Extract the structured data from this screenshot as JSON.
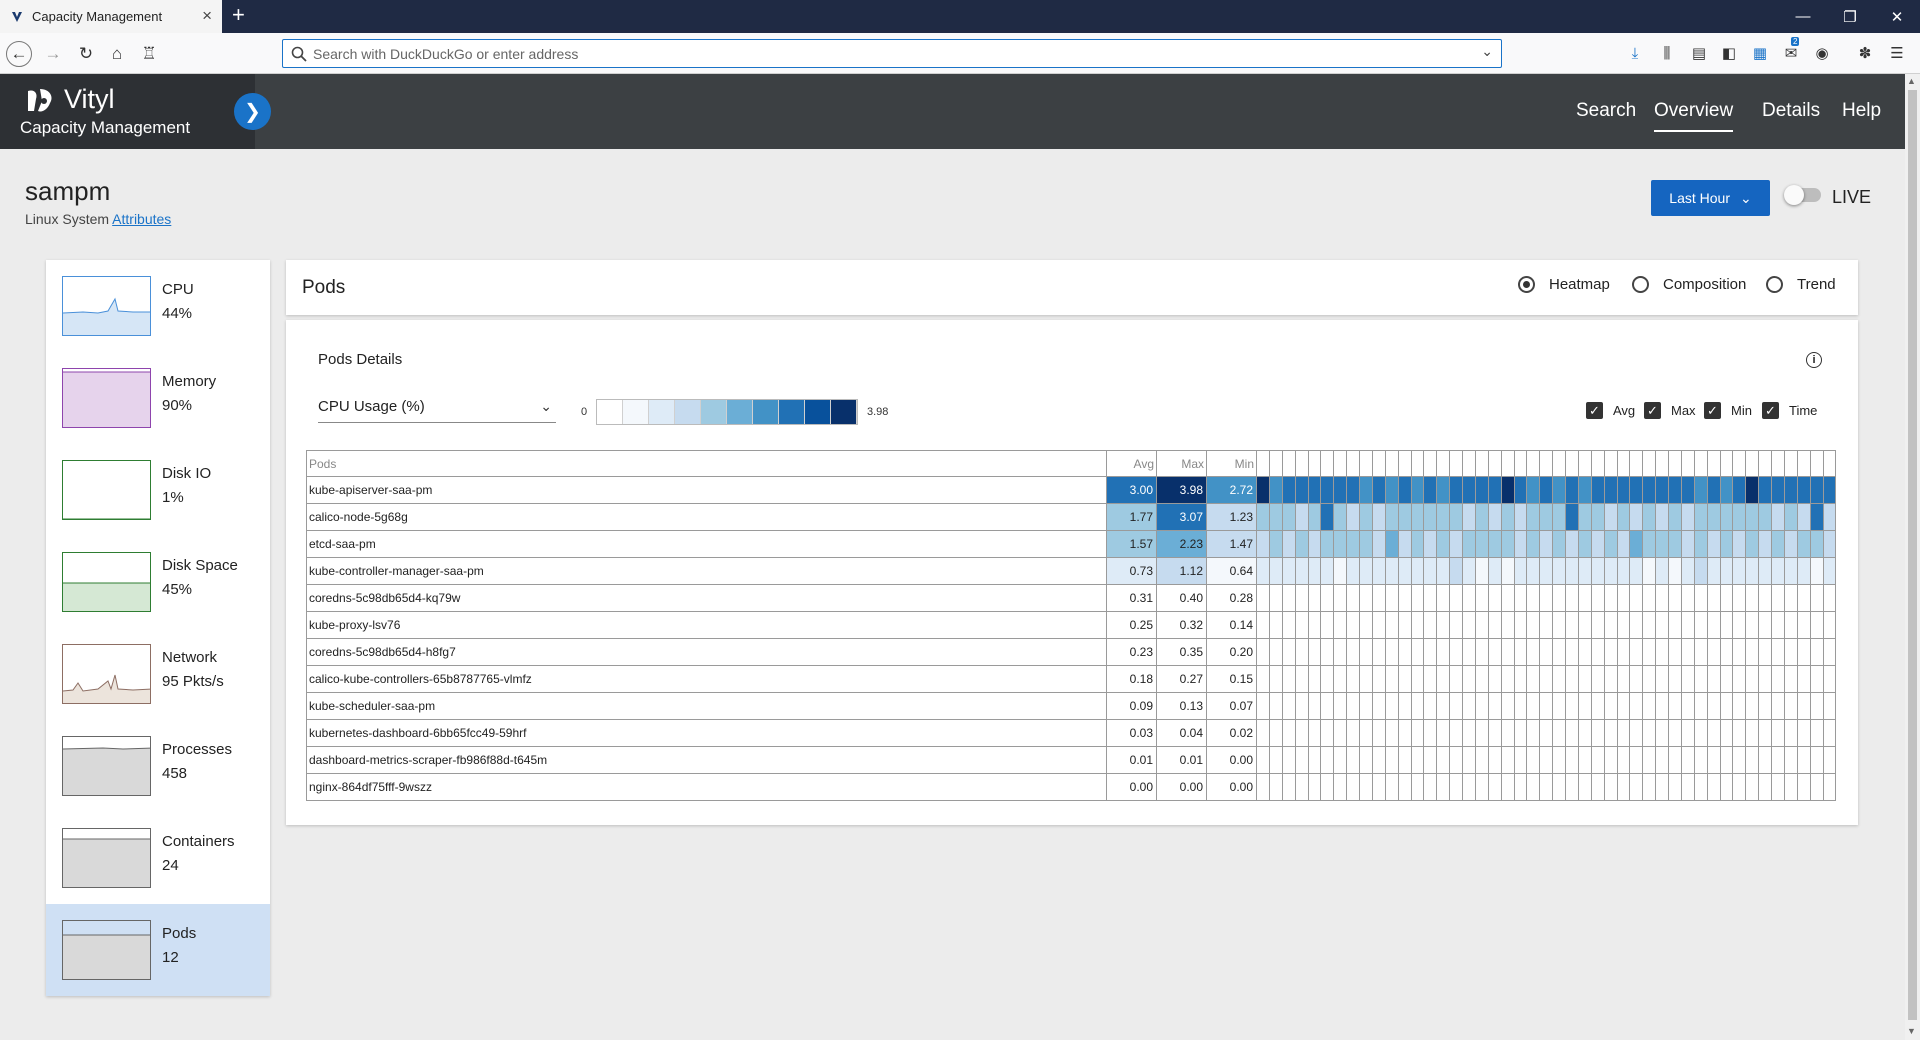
{
  "browser": {
    "tab_title": "Capacity Management",
    "url_placeholder": "Search with DuckDuckGo or enter address",
    "badge_count": "2"
  },
  "app": {
    "brand": "Vityl",
    "subtitle": "Capacity Management",
    "nav": [
      "Search",
      "Overview",
      "Details",
      "Help"
    ],
    "active_nav": "Overview"
  },
  "system": {
    "name": "sampm",
    "type": "Linux System",
    "attributes_link": "Attributes",
    "time_range": "Last Hour",
    "live_label": "LIVE",
    "live_on": false
  },
  "sidebar": [
    {
      "label": "CPU",
      "value": "44%",
      "color": "#4a90d9",
      "fill": "#d6e6f6"
    },
    {
      "label": "Memory",
      "value": "90%",
      "color": "#8e44ad",
      "fill": "#e6d3ec"
    },
    {
      "label": "Disk IO",
      "value": "1%",
      "color": "#2e7d32",
      "fill": "#ffffff"
    },
    {
      "label": "Disk Space",
      "value": "45%",
      "color": "#2e7d32",
      "fill": "#d5e8d4"
    },
    {
      "label": "Network",
      "value": "95 Pkts/s",
      "color": "#8d6e63",
      "fill": "#ece4dc"
    },
    {
      "label": "Processes",
      "value": "458",
      "color": "#666666",
      "fill": "#d9d9d9"
    },
    {
      "label": "Containers",
      "value": "24",
      "color": "#666666",
      "fill": "#d9d9d9"
    },
    {
      "label": "Pods",
      "value": "12",
      "color": "#666666",
      "fill": "#d9d9d9",
      "selected": true
    }
  ],
  "panel": {
    "title": "Pods",
    "views": [
      "Heatmap",
      "Composition",
      "Trend"
    ],
    "selected_view": "Heatmap",
    "details_title": "Pods Details",
    "metric": "CPU Usage (%)",
    "scale_min": "0",
    "scale_max": "3.98",
    "scale_colors": [
      "#ffffff",
      "#f4f8fc",
      "#deebf7",
      "#c6dbef",
      "#9ecae1",
      "#6baed6",
      "#4292c6",
      "#2171b5",
      "#08519c",
      "#08306b"
    ],
    "checkboxes": [
      "Avg",
      "Max",
      "Min",
      "Time"
    ]
  },
  "table": {
    "headers": {
      "pods": "Pods",
      "avg": "Avg",
      "max": "Max",
      "min": "Min"
    },
    "rows": [
      {
        "name": "kube-apiserver-saa-pm",
        "avg": "3.00",
        "max": "3.98",
        "min": "2.72"
      },
      {
        "name": "calico-node-5g68g",
        "avg": "1.77",
        "max": "3.07",
        "min": "1.23"
      },
      {
        "name": "etcd-saa-pm",
        "avg": "1.57",
        "max": "2.23",
        "min": "1.47"
      },
      {
        "name": "kube-controller-manager-saa-pm",
        "avg": "0.73",
        "max": "1.12",
        "min": "0.64"
      },
      {
        "name": "coredns-5c98db65d4-kq79w",
        "avg": "0.31",
        "max": "0.40",
        "min": "0.28"
      },
      {
        "name": "kube-proxy-lsv76",
        "avg": "0.25",
        "max": "0.32",
        "min": "0.14"
      },
      {
        "name": "coredns-5c98db65d4-h8fg7",
        "avg": "0.23",
        "max": "0.35",
        "min": "0.20"
      },
      {
        "name": "calico-kube-controllers-65b8787765-vlmfz",
        "avg": "0.18",
        "max": "0.27",
        "min": "0.15"
      },
      {
        "name": "kube-scheduler-saa-pm",
        "avg": "0.09",
        "max": "0.13",
        "min": "0.07"
      },
      {
        "name": "kubernetes-dashboard-6bb65fcc49-59hrf",
        "avg": "0.03",
        "max": "0.04",
        "min": "0.02"
      },
      {
        "name": "dashboard-metrics-scraper-fb986f88d-t645m",
        "avg": "0.01",
        "max": "0.01",
        "min": "0.00"
      },
      {
        "name": "nginx-864df75fff-9wszz",
        "avg": "0.00",
        "max": "0.00",
        "min": "0.00"
      }
    ],
    "heat_cells": 45
  }
}
